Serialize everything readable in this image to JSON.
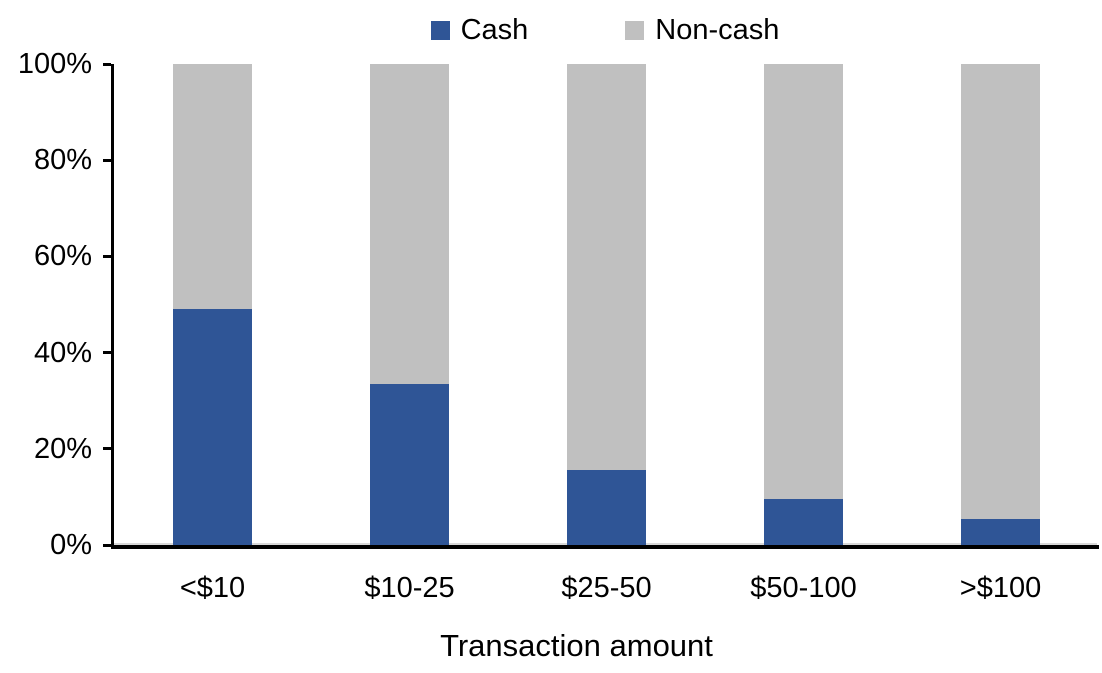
{
  "chart_data": {
    "type": "bar",
    "stacked": true,
    "orientation": "vertical",
    "title": "",
    "xlabel": "Transaction amount",
    "ylabel": "",
    "categories": [
      "<$10",
      "$10-25",
      "$25-50",
      "$50-100",
      ">$100"
    ],
    "series": [
      {
        "name": "Cash",
        "color": "#2f5596",
        "values": [
          49,
          33.5,
          15.5,
          9.5,
          5.5
        ]
      },
      {
        "name": "Non-cash",
        "color": "#c0c0c0",
        "values": [
          51,
          66.5,
          84.5,
          90.5,
          94.5
        ]
      }
    ],
    "ylim": [
      0,
      100
    ],
    "y_ticks": [
      "0%",
      "20%",
      "40%",
      "60%",
      "80%",
      "100%"
    ],
    "grid": "off",
    "legend_position": "top-center",
    "axis_color": "#000000",
    "background_color": "#ffffff"
  }
}
